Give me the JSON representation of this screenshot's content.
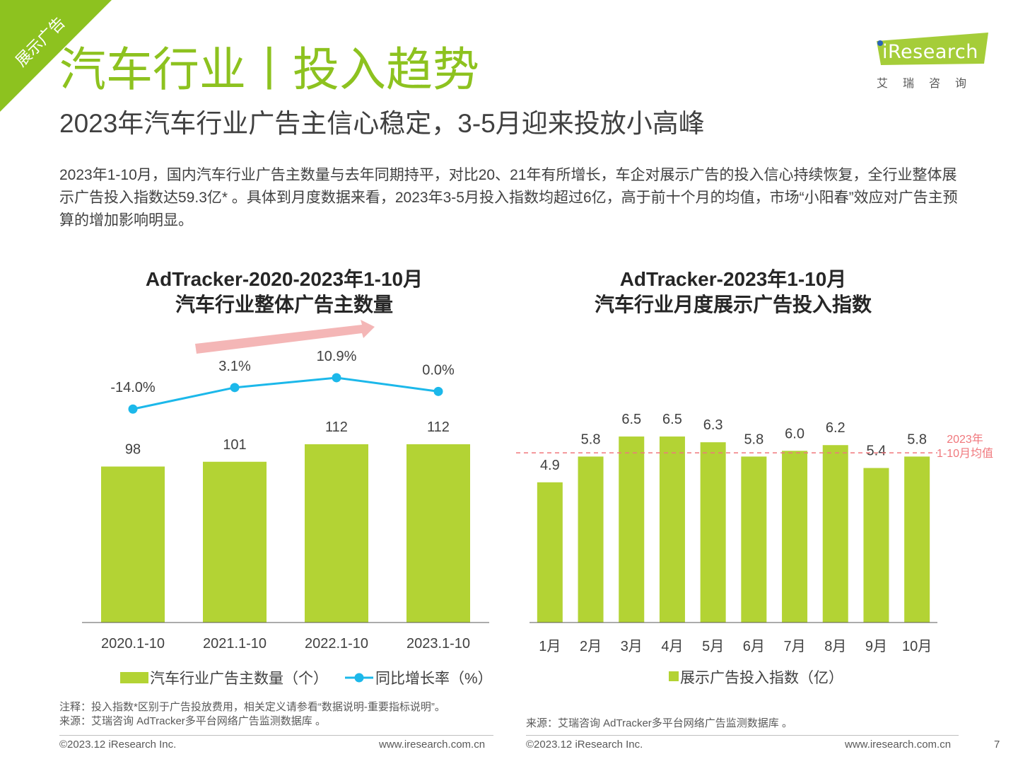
{
  "corner_tag": "展示广告",
  "header": {
    "title": "汽车行业丨投入趋势",
    "subtitle": "2023年汽车行业广告主信心稳定，3-5月迎来投放小高峰"
  },
  "logo": {
    "brand": "iResearch",
    "chinese": "艾瑞咨询"
  },
  "intro": "2023年1-10月，国内汽车行业广告主数量与去年同期持平，对比20、21年有所增长，车企对展示广告的投入信心持续恢复，全行业整体展示广告投入指数达59.3亿* 。具体到月度数据来看，2023年3-5月投入指数均超过6亿，高于前十个月的均值，市场“小阳春”效应对广告主预算的增加影响明显。",
  "colors": {
    "green": "#b3d334",
    "blue": "#1cb8ea",
    "pink": "#f0777c",
    "arrow": "#f4b6b6",
    "title_green": "#8dc21f"
  },
  "chart_data": [
    {
      "type": "bar",
      "title_line1": "AdTracker-2020-2023年1-10月",
      "title_line2": "汽车行业整体广告主数量",
      "categories": [
        "2020.1-10",
        "2021.1-10",
        "2022.1-10",
        "2023.1-10"
      ],
      "series": [
        {
          "name": "汽车行业广告主数量（个）",
          "type": "bar",
          "values": [
            98,
            101,
            112,
            112
          ],
          "labels": [
            "98",
            "101",
            "112",
            "112"
          ]
        },
        {
          "name": "同比增长率（%）",
          "type": "line",
          "values": [
            -14.0,
            3.1,
            10.9,
            0.0
          ],
          "labels": [
            "-14.0%",
            "3.1%",
            "10.9%",
            "0.0%"
          ]
        }
      ],
      "ylim": [
        0,
        160
      ],
      "line_ylim": [
        -60,
        30
      ],
      "annotations": [
        "upward trend arrow"
      ]
    },
    {
      "type": "bar",
      "title_line1": "AdTracker-2023年1-10月",
      "title_line2": "汽车行业月度展示广告投入指数",
      "categories": [
        "1月",
        "2月",
        "3月",
        "4月",
        "5月",
        "6月",
        "7月",
        "8月",
        "9月",
        "10月"
      ],
      "series": [
        {
          "name": "展示广告投入指数（亿）",
          "values": [
            4.9,
            5.8,
            6.5,
            6.5,
            6.3,
            5.8,
            6.0,
            6.2,
            5.4,
            5.8
          ],
          "labels": [
            "4.9",
            "5.8",
            "6.5",
            "6.5",
            "6.3",
            "5.8",
            "6.0",
            "6.2",
            "5.4",
            "5.8"
          ]
        }
      ],
      "reference_line": {
        "value": 5.93,
        "label_line1": "2023年",
        "label_line2": "1-10月均值"
      },
      "ylim": [
        0,
        8.9
      ]
    }
  ],
  "notes": {
    "line1": "注释：投入指数*区别于广告投放费用，相关定义请参看“数据说明-重要指标说明”。",
    "line2": "来源：艾瑞咨询 AdTracker多平台网络广告监测数据库 。",
    "right_source": "来源：艾瑞咨询 AdTracker多平台网络广告监测数据库 。"
  },
  "footer": {
    "copyright_left": "©2023.12 iResearch Inc.",
    "url_left": "www.iresearch.com.cn",
    "copyright_right": "©2023.12 iResearch Inc.",
    "url_right": "www.iresearch.com.cn",
    "page_number": "7"
  }
}
